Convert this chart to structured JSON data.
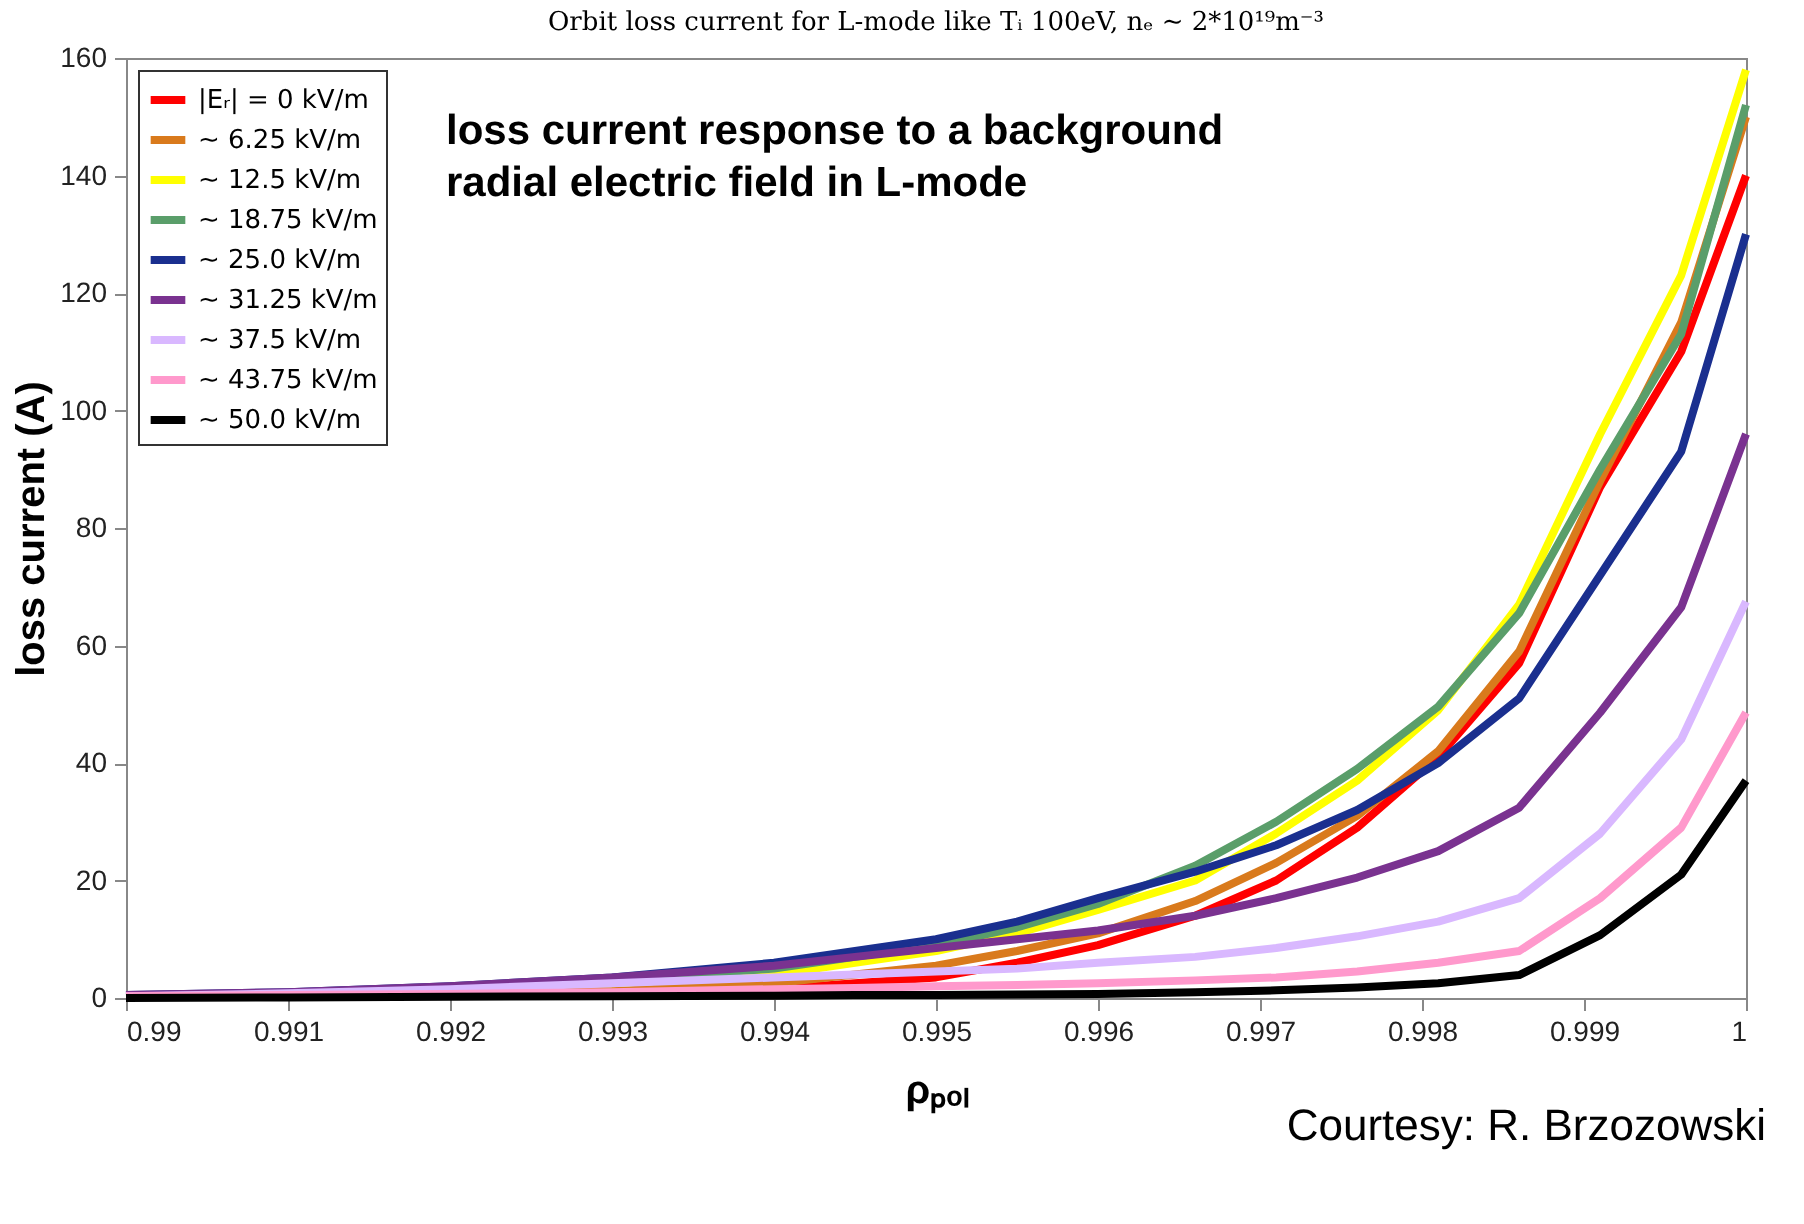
{
  "chart_data": {
    "type": "line",
    "title": "Orbit loss current for L-mode like Tᵢ 100eV, nₑ ∼ 2*10¹⁹m⁻³",
    "xlabel": "ρₚₒₗ",
    "ylabel": "loss current (A)",
    "annotations": [
      "loss current response to a background\nradial electric field in L-mode",
      "Courtesy: R. Brzozowski"
    ],
    "x": [
      0.99,
      0.991,
      0.992,
      0.993,
      0.994,
      0.9945,
      0.995,
      0.9955,
      0.996,
      0.9966,
      0.9971,
      0.9976,
      0.9981,
      0.9986,
      0.9991,
      0.9996,
      1
    ],
    "series": [
      {
        "name": "|Eᵣ| = 0 kV/m",
        "color": "#ff0000",
        "values": [
          null,
          null,
          0.4,
          0.8,
          1.5,
          2.5,
          3.5,
          6,
          9,
          14,
          20,
          29,
          41,
          57,
          87,
          110,
          140
        ]
      },
      {
        "name": "∼ 6.25 kV/m",
        "color": "#d97a1c",
        "values": [
          null,
          null,
          0.6,
          1.2,
          2.5,
          4,
          5.5,
          8,
          11,
          16.5,
          23,
          31,
          42,
          59,
          88,
          115,
          150
        ]
      },
      {
        "name": "∼ 12.5 kV/m",
        "color": "#ffff00",
        "values": [
          null,
          null,
          null,
          2.5,
          4,
          6,
          8,
          11,
          15,
          20,
          28,
          37,
          49,
          67,
          96,
          123,
          158
        ]
      },
      {
        "name": "∼ 18.75 kV/m",
        "color": "#5a9e6a",
        "values": [
          0.3,
          0.7,
          1.5,
          3,
          5,
          7,
          9,
          12,
          16,
          22.5,
          30,
          39,
          49.6,
          65.5,
          90,
          113,
          152
        ]
      },
      {
        "name": "∼ 25.0 kV/m",
        "color": "#1a2f8f",
        "values": [
          0.5,
          1,
          2,
          3.5,
          6,
          8,
          10,
          13,
          17,
          21.5,
          26,
          32,
          40,
          51,
          72,
          93,
          130
        ]
      },
      {
        "name": "∼ 31.25 kV/m",
        "color": "#7a3290",
        "values": [
          0.5,
          1,
          2,
          3.5,
          5.5,
          7,
          8.5,
          10,
          11.5,
          14,
          17,
          20.5,
          25,
          32.4,
          48.6,
          66.5,
          96
        ]
      },
      {
        "name": "∼ 37.5 kV/m",
        "color": "#d9b8ff",
        "values": [
          0.3,
          0.8,
          1.5,
          2.5,
          3.5,
          4,
          4.5,
          5,
          6,
          7,
          8.5,
          10.5,
          13,
          17,
          28,
          44,
          67.5
        ]
      },
      {
        "name": "∼ 43.75 kV/m",
        "color": "#ff99cc",
        "values": [
          0.3,
          0.5,
          0.7,
          1,
          1.5,
          1.7,
          2,
          2.2,
          2.5,
          3,
          3.5,
          4.5,
          6,
          8,
          17,
          29,
          48.6
        ]
      },
      {
        "name": "∼ 50.0 kV/m",
        "color": "#000000",
        "values": [
          0,
          0.1,
          0.2,
          0.3,
          0.4,
          0.5,
          0.5,
          0.6,
          0.7,
          1,
          1.3,
          1.8,
          2.5,
          3.9,
          10.7,
          21,
          37
        ]
      }
    ],
    "xlim": [
      0.99,
      1
    ],
    "xticks": [
      0.99,
      0.991,
      0.992,
      0.993,
      0.994,
      0.995,
      0.996,
      0.997,
      0.998,
      0.999,
      1
    ],
    "ylim": [
      0,
      160
    ],
    "yticks": [
      0,
      20,
      40,
      60,
      80,
      100,
      120,
      140,
      160
    ],
    "grid": false,
    "legend": "top left",
    "marker": "none",
    "line_style": "solid"
  }
}
